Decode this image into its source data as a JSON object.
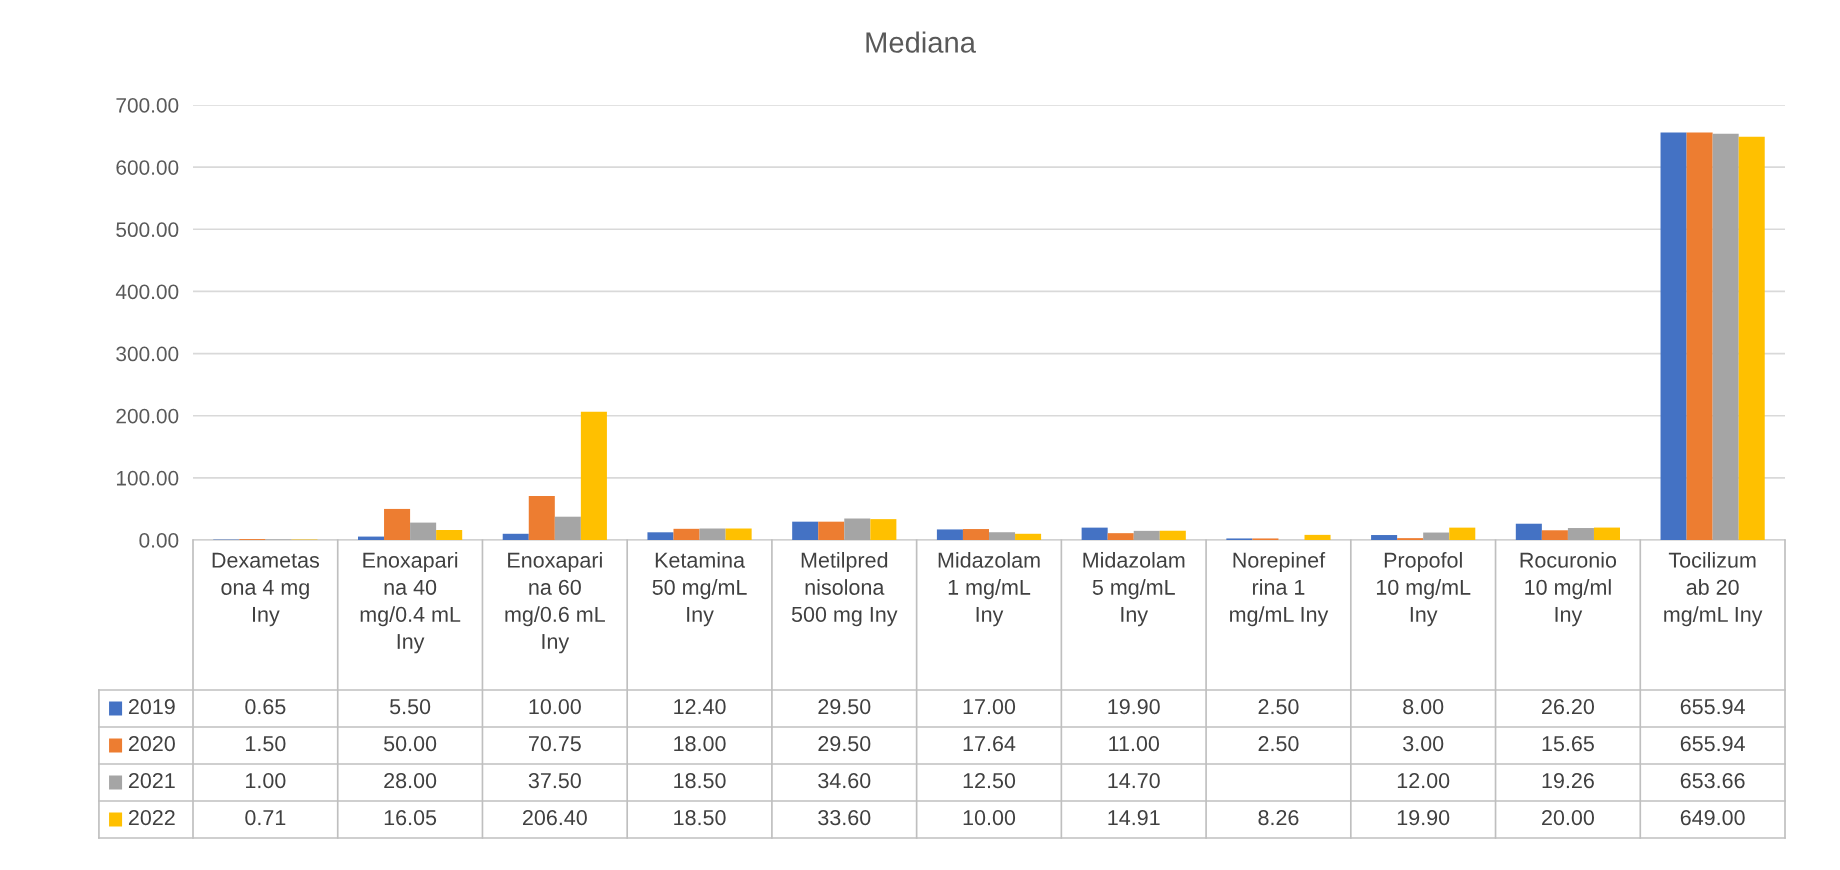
{
  "chart_data": {
    "type": "bar",
    "title": "Mediana",
    "categories": [
      "Dexametasona 4 mg Iny",
      "Enoxaparina 40 mg/0.4 mL Iny",
      "Enoxaparina 60 mg/0.6 mL Iny",
      "Ketamina 50 mg/mL Iny",
      "Metilprednisolona 500 mg Iny",
      "Midazolam 1 mg/mL Iny",
      "Midazolam 5 mg/mL Iny",
      "Norepinefrina 1 mg/mL Iny",
      "Propofol 10 mg/mL Iny",
      "Rocuronio 10 mg/ml Iny",
      "Tocilizumab 20 mg/mL Iny"
    ],
    "series": [
      {
        "name": "2019",
        "color": "#4472c4",
        "values": [
          0.65,
          5.5,
          10.0,
          12.4,
          29.5,
          17.0,
          19.9,
          2.5,
          8.0,
          26.2,
          655.94
        ],
        "value_labels": [
          "0.65",
          "5.50",
          "10.00",
          "12.40",
          "29.50",
          "17.00",
          "19.90",
          "2.50",
          "8.00",
          "26.20",
          "655.94"
        ]
      },
      {
        "name": "2020",
        "color": "#ed7d31",
        "values": [
          1.5,
          50.0,
          70.75,
          18.0,
          29.5,
          17.64,
          11.0,
          2.5,
          3.0,
          15.65,
          655.94
        ],
        "value_labels": [
          "1.50",
          "50.00",
          "70.75",
          "18.00",
          "29.50",
          "17.64",
          "11.00",
          "2.50",
          "3.00",
          "15.65",
          "655.94"
        ]
      },
      {
        "name": "2021",
        "color": "#a5a5a5",
        "values": [
          1.0,
          28.0,
          37.5,
          18.5,
          34.6,
          12.5,
          14.7,
          null,
          12.0,
          19.26,
          653.66
        ],
        "value_labels": [
          "1.00",
          "28.00",
          "37.50",
          "18.50",
          "34.60",
          "12.50",
          "14.70",
          null,
          "12.00",
          "19.26",
          "653.66"
        ]
      },
      {
        "name": "2022",
        "color": "#ffc000",
        "values": [
          0.71,
          16.05,
          206.4,
          18.5,
          33.6,
          10.0,
          14.91,
          8.26,
          19.9,
          20.0,
          649.0
        ],
        "value_labels": [
          "0.71",
          "16.05",
          "206.40",
          "18.50",
          "33.60",
          "10.00",
          "14.91",
          "8.26",
          "19.90",
          "20.00",
          "649.00"
        ]
      }
    ],
    "ylim": [
      0,
      700
    ],
    "yticks": [
      {
        "value": 0,
        "label": "0.00"
      },
      {
        "value": 100,
        "label": "100.00"
      },
      {
        "value": 200,
        "label": "200.00"
      },
      {
        "value": 300,
        "label": "300.00"
      },
      {
        "value": 400,
        "label": "400.00"
      },
      {
        "value": 500,
        "label": "500.00"
      },
      {
        "value": 600,
        "label": "600.00"
      },
      {
        "value": 700,
        "label": "700.00"
      }
    ],
    "grid": "y",
    "legend": "bottom"
  }
}
